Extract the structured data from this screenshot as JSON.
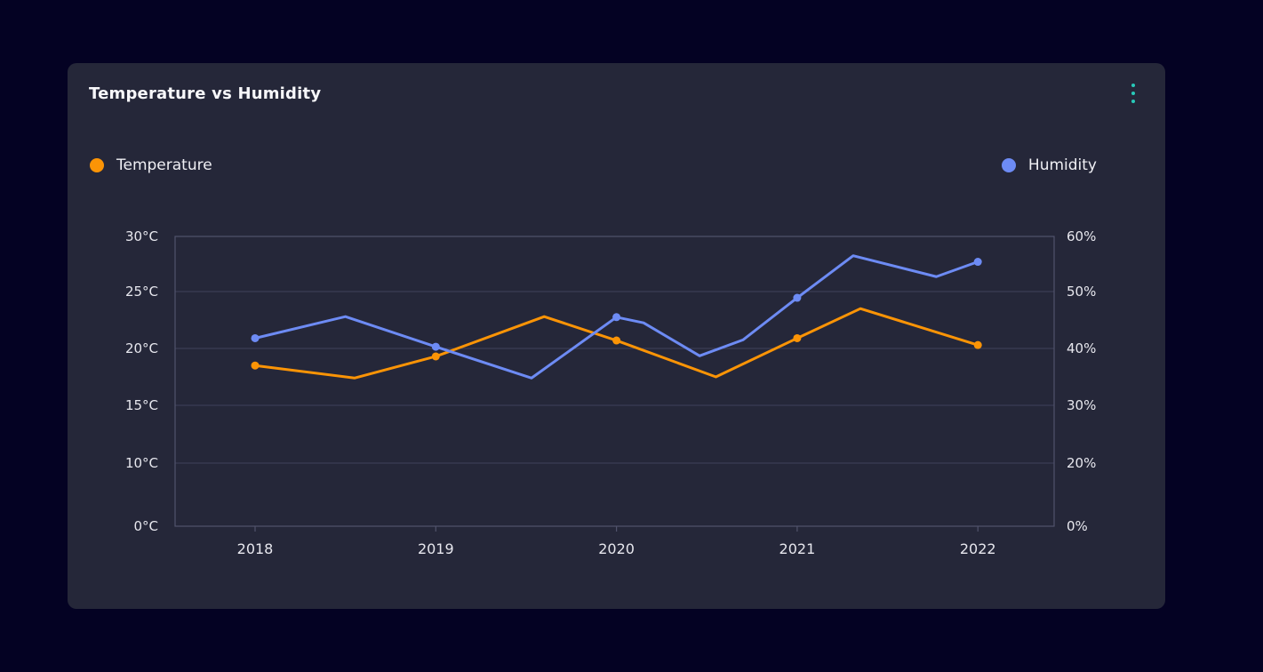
{
  "theme": {
    "page_bg": "#040223",
    "card_bg": "#252739",
    "title_text": "#F7F7FA",
    "axis_text": "#E7E7EE",
    "gridline": "#3E405B",
    "axis_border": "#51536C",
    "accent_teal": "#28C9B9",
    "temperature_color": "#FB9406",
    "humidity_color": "#6D8BF4"
  },
  "card": {
    "title": "Temperature vs Humidity",
    "menu_icon": "kebab-vertical-dots-icon",
    "legend": [
      {
        "label": "Temperature",
        "color": "#FB9406",
        "position": "left"
      },
      {
        "label": "Humidity",
        "color": "#6D8BF4",
        "position": "right"
      }
    ]
  },
  "chart_data": {
    "type": "line",
    "title": "Temperature vs Humidity",
    "grid": "horizontal-only",
    "x_tick_labels": [
      "2018",
      "2019",
      "2020",
      "2021",
      "2022"
    ],
    "x_tick_values": [
      2018,
      2019,
      2020,
      2021,
      2022
    ],
    "left_axis": {
      "unit": "°C",
      "tick_labels": [
        "30°C",
        "25°C",
        "20°C",
        "15°C",
        "10°C",
        "0°C"
      ],
      "tick_values": [
        30,
        25,
        20,
        15,
        10,
        0
      ]
    },
    "right_axis": {
      "unit": "%",
      "tick_labels": [
        "60%",
        "50%",
        "40%",
        "30%",
        "20%",
        "0%"
      ],
      "tick_values": [
        60,
        50,
        40,
        30,
        20,
        0
      ]
    },
    "series": [
      {
        "name": "Temperature",
        "axis": "left",
        "color": "#FB9406",
        "yearly_values": {
          "2018": 18.5,
          "2019": 19.3,
          "2020": 20.7,
          "2021": 20.9,
          "2022": 20.3
        },
        "points": [
          {
            "x": 2018.0,
            "v": 18.5,
            "marker": true
          },
          {
            "x": 2018.55,
            "v": 17.4,
            "marker": false
          },
          {
            "x": 2019.0,
            "v": 19.3,
            "marker": true
          },
          {
            "x": 2019.6,
            "v": 22.8,
            "marker": false
          },
          {
            "x": 2020.0,
            "v": 20.7,
            "marker": true
          },
          {
            "x": 2020.55,
            "v": 17.5,
            "marker": false
          },
          {
            "x": 2021.0,
            "v": 20.9,
            "marker": true
          },
          {
            "x": 2021.35,
            "v": 23.5,
            "marker": false
          },
          {
            "x": 2022.0,
            "v": 20.3,
            "marker": true
          }
        ]
      },
      {
        "name": "Humidity",
        "axis": "right",
        "color": "#6D8BF4",
        "yearly_values": {
          "2018": 41.8,
          "2019": 40.3,
          "2020": 45.5,
          "2021": 48.9,
          "2022": 55.4
        },
        "points": [
          {
            "x": 2018.0,
            "v": 41.8,
            "marker": true
          },
          {
            "x": 2018.5,
            "v": 45.6,
            "marker": false
          },
          {
            "x": 2019.0,
            "v": 40.3,
            "marker": true
          },
          {
            "x": 2019.53,
            "v": 34.8,
            "marker": false
          },
          {
            "x": 2020.0,
            "v": 45.5,
            "marker": true
          },
          {
            "x": 2020.15,
            "v": 44.5,
            "marker": false
          },
          {
            "x": 2020.46,
            "v": 38.7,
            "marker": false
          },
          {
            "x": 2020.7,
            "v": 41.5,
            "marker": false
          },
          {
            "x": 2021.0,
            "v": 48.9,
            "marker": true
          },
          {
            "x": 2021.31,
            "v": 56.5,
            "marker": false
          },
          {
            "x": 2021.77,
            "v": 52.7,
            "marker": false
          },
          {
            "x": 2022.0,
            "v": 55.4,
            "marker": true
          }
        ]
      }
    ]
  }
}
